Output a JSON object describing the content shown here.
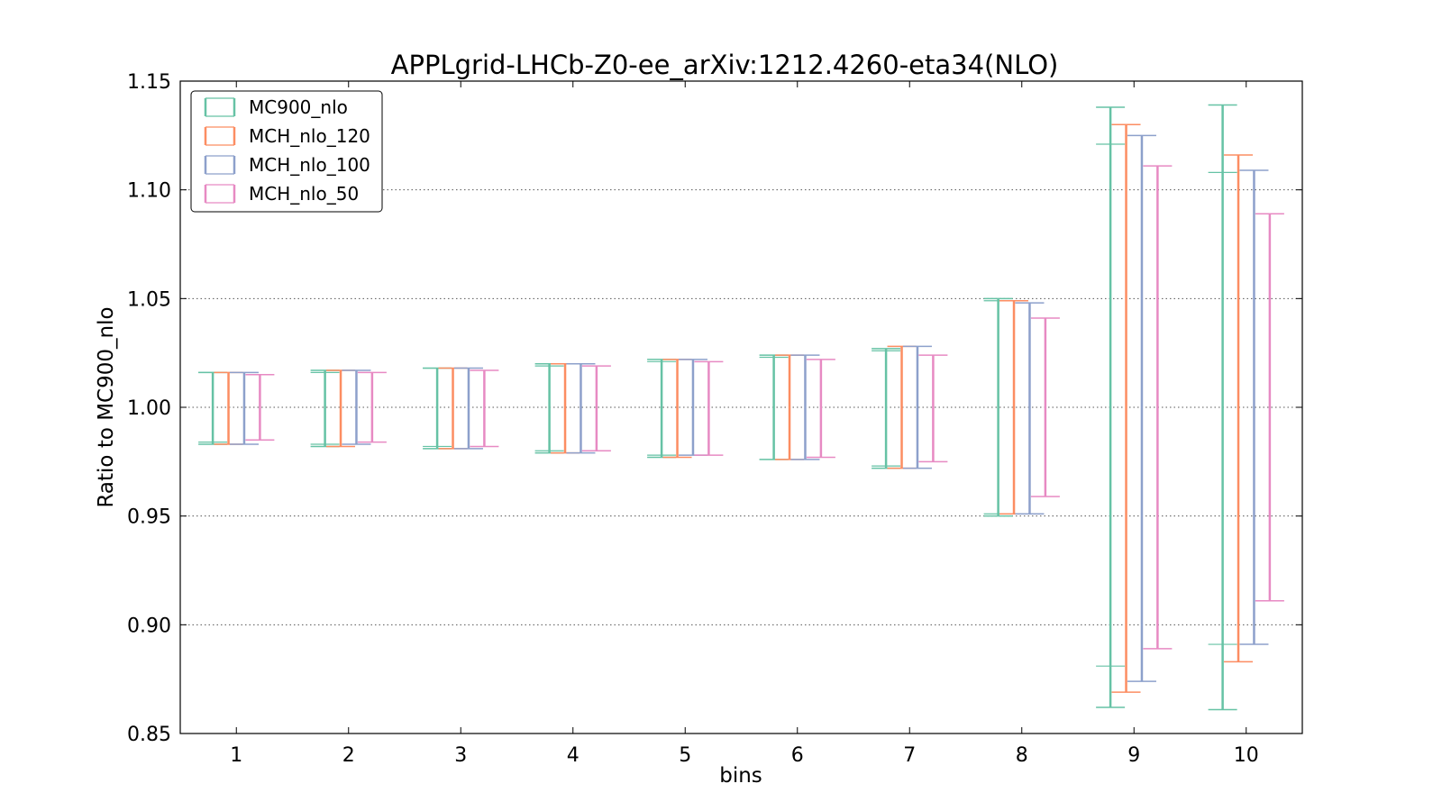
{
  "chart_data": {
    "type": "errorbar",
    "title": "APPLgrid-LHCb-Z0-ee_arXiv:1212.4260-eta34(NLO)",
    "xlabel": "bins",
    "ylabel": "Ratio to MC900_nlo",
    "xlim": [
      0.5,
      10.5
    ],
    "ylim": [
      0.85,
      1.15
    ],
    "xticks": [
      "1",
      "2",
      "3",
      "4",
      "5",
      "6",
      "7",
      "8",
      "9",
      "10"
    ],
    "yticks": [
      "0.85",
      "0.90",
      "0.95",
      "1.00",
      "1.05",
      "1.10",
      "1.15"
    ],
    "grid": "horizontal-dotted",
    "legend_position": "top-left",
    "categories": [
      1,
      2,
      3,
      4,
      5,
      6,
      7,
      8,
      9,
      10
    ],
    "series": [
      {
        "name": "MC900_nlo",
        "color": "#66c2a5",
        "low": [
          0.983,
          0.982,
          0.981,
          0.979,
          0.977,
          0.976,
          0.972,
          0.95,
          0.862,
          0.861
        ],
        "high": [
          1.016,
          1.017,
          1.018,
          1.02,
          1.022,
          1.024,
          1.027,
          1.05,
          1.138,
          1.139
        ],
        "inner_low": [
          0.984,
          0.983,
          0.982,
          0.98,
          0.978,
          0.976,
          0.973,
          0.951,
          0.881,
          0.891
        ],
        "inner_high": [
          1.016,
          1.016,
          1.018,
          1.019,
          1.021,
          1.023,
          1.026,
          1.049,
          1.121,
          1.108
        ]
      },
      {
        "name": "MCH_nlo_120",
        "color": "#fc8d62",
        "low": [
          0.983,
          0.982,
          0.981,
          0.979,
          0.977,
          0.976,
          0.972,
          0.951,
          0.869,
          0.883
        ],
        "high": [
          1.016,
          1.017,
          1.018,
          1.02,
          1.022,
          1.024,
          1.028,
          1.049,
          1.13,
          1.116
        ]
      },
      {
        "name": "MCH_nlo_100",
        "color": "#8da0cb",
        "low": [
          0.983,
          0.983,
          0.981,
          0.979,
          0.978,
          0.976,
          0.972,
          0.951,
          0.874,
          0.891
        ],
        "high": [
          1.016,
          1.017,
          1.018,
          1.02,
          1.022,
          1.024,
          1.028,
          1.048,
          1.125,
          1.109
        ]
      },
      {
        "name": "MCH_nlo_50",
        "color": "#e78ac3",
        "low": [
          0.985,
          0.984,
          0.982,
          0.98,
          0.978,
          0.977,
          0.975,
          0.959,
          0.889,
          0.911
        ],
        "high": [
          1.015,
          1.016,
          1.017,
          1.019,
          1.021,
          1.022,
          1.024,
          1.041,
          1.111,
          1.089
        ]
      }
    ]
  }
}
